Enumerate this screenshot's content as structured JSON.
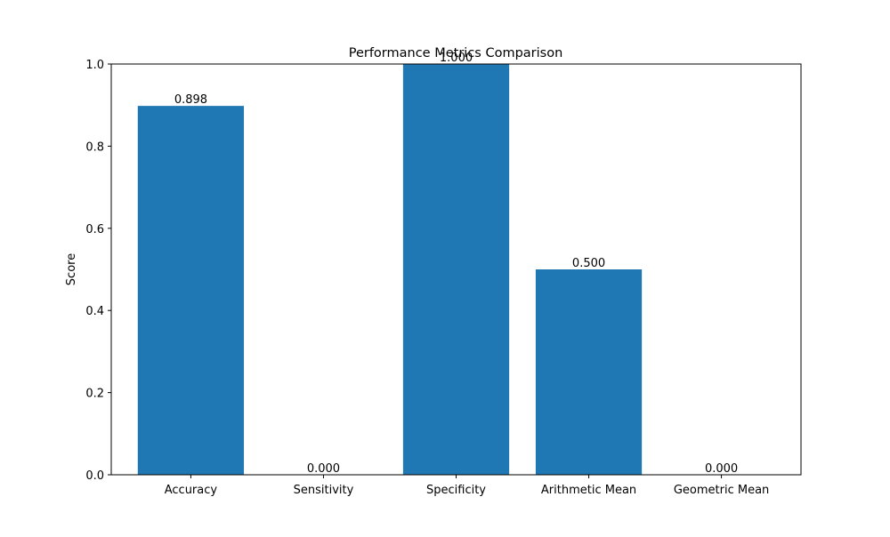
{
  "chart_data": {
    "type": "bar",
    "title": "Performance Metrics Comparison",
    "xlabel": "",
    "ylabel": "Score",
    "categories": [
      "Accuracy",
      "Sensitivity",
      "Specificity",
      "Arithmetic Mean",
      "Geometric Mean"
    ],
    "values": [
      0.898,
      0.0,
      1.0,
      0.5,
      0.0
    ],
    "value_labels": [
      "0.898",
      "0.000",
      "1.000",
      "0.500",
      "0.000"
    ],
    "ylim": [
      0,
      1.0
    ],
    "yticks": [
      0.0,
      0.2,
      0.4,
      0.6,
      0.8,
      1.0
    ],
    "ytick_labels": [
      "0.0",
      "0.2",
      "0.4",
      "0.6",
      "0.8",
      "1.0"
    ],
    "grid": false,
    "legend": "none",
    "bar_color": "#1f77b4"
  }
}
